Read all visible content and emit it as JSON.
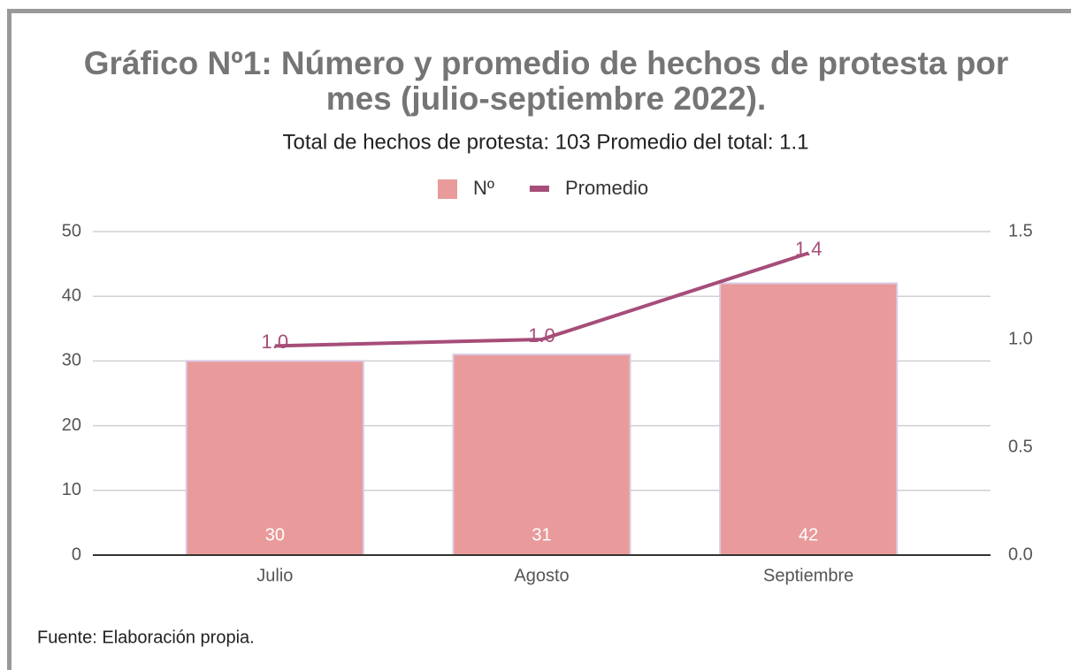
{
  "chart_data": {
    "type": "bar_line",
    "title": "Gráfico Nº1: Número y promedio de hechos de protesta por mes (julio-septiembre 2022).",
    "subtitle": "Total de hechos de protesta: 103 Promedio del total: 1.1",
    "categories": [
      "Julio",
      "Agosto",
      "Septiembre"
    ],
    "series": [
      {
        "name": "Nº",
        "type": "bar",
        "color": "#e99a9a",
        "values": [
          30,
          31,
          42
        ]
      },
      {
        "name": "Promedio",
        "type": "line",
        "axis": "y2",
        "color": "#a64d79",
        "values": [
          0.97,
          1.0,
          1.4
        ],
        "value_labels": [
          "1.0",
          "1.0",
          "1.4"
        ]
      }
    ],
    "ylim": [
      0,
      50
    ],
    "yticks": [
      0,
      10,
      20,
      30,
      40,
      50
    ],
    "y2lim": [
      0,
      1.5
    ],
    "y2ticks": [
      {
        "value": 0,
        "label": "0.0"
      },
      0.5,
      {
        "value": 1,
        "label": "1.0"
      },
      1.5
    ],
    "grid": true,
    "legend": "top",
    "source": "Fuente: Elaboración propia."
  }
}
